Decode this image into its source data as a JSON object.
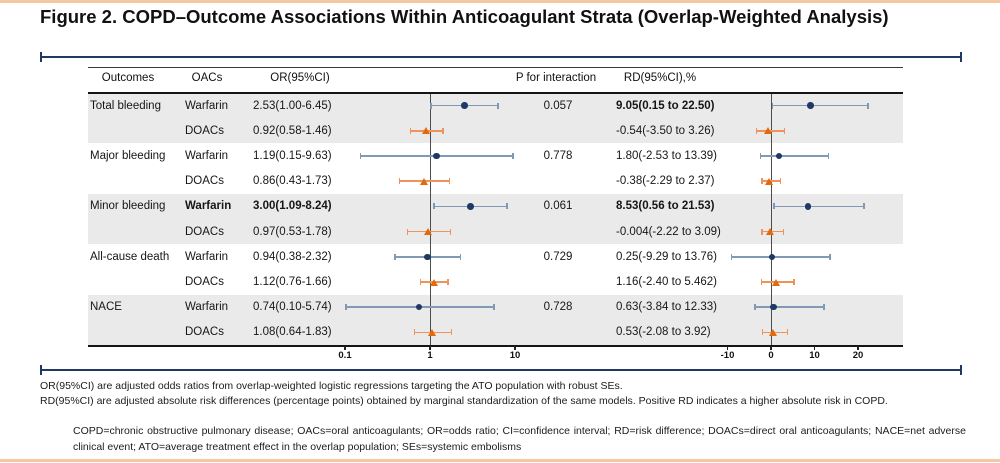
{
  "figure": {
    "title": "Figure 2. COPD–Outcome Associations Within Anticoagulant Strata (Overlap-Weighted Analysis)",
    "footnotes": [
      "OR(95%CI) are adjusted odds ratios from overlap-weighted logistic regressions targeting the ATO population with robust SEs.",
      "RD(95%CI) are adjusted absolute risk differences (percentage points) obtained by marginal standardization of the same models. Positive RD indicates a higher absolute risk in COPD."
    ],
    "abbreviations": "COPD=chronic obstructive pulmonary disease; OACs=oral anticoagulants; OR=odds ratio; CI=confidence interval; RD=risk difference; DOACs=direct oral anticoagulants; NACE=net adverse clinical event; ATO=average treatment effect in the overlap population; SEs=systemic embolisms",
    "colors": {
      "accent_border": "#F5C8A2",
      "bracket": "#1F3864",
      "band": "#EAEAEA",
      "reference_line": "#4d4d4d",
      "warfarin_marker": "#1F3864",
      "warfarin_ci": "#8099B5",
      "doacs_marker": "#E4690B",
      "doacs_ci": "#F0935B"
    }
  },
  "chart_data": {
    "type": "forest",
    "title": "COPD–Outcome Associations Within Anticoagulant Strata (Overlap-Weighted Analysis)",
    "columns": {
      "outcomes": "Outcomes",
      "oacs": "OACs",
      "or": "OR(95%CI)",
      "p": "P for interaction",
      "rd": "RD(95%CI),%"
    },
    "or_axis": {
      "scale": "log10",
      "ticks": [
        0.1,
        1,
        10
      ],
      "reference": 1
    },
    "rd_axis": {
      "scale": "linear",
      "ticks": [
        -10,
        0,
        10,
        20
      ],
      "reference": 0
    },
    "groups": [
      "Total bleeding",
      "Major bleeding",
      "Minor bleeding",
      "All-cause death",
      "NACE"
    ],
    "rows": [
      {
        "outcome": "Total bleeding",
        "oac": "Warfarin",
        "series": "warfarin",
        "or": 2.53,
        "or_lo": 1.0,
        "or_hi": 6.45,
        "or_text": "2.53(1.00-6.45)",
        "p": "0.057",
        "rd": 9.05,
        "rd_lo": 0.15,
        "rd_hi": 22.5,
        "rd_text": "9.05(0.15 to 22.50)",
        "bold_or": false,
        "bold_rd": true
      },
      {
        "outcome": "",
        "oac": "DOACs",
        "series": "doacs",
        "or": 0.92,
        "or_lo": 0.58,
        "or_hi": 1.46,
        "or_text": "0.92(0.58-1.46)",
        "p": "",
        "rd": -0.54,
        "rd_lo": -3.5,
        "rd_hi": 3.26,
        "rd_text": "-0.54(-3.50 to 3.26)",
        "bold_or": false,
        "bold_rd": false
      },
      {
        "outcome": "Major bleeding",
        "oac": "Warfarin",
        "series": "warfarin",
        "or": 1.19,
        "or_lo": 0.15,
        "or_hi": 9.63,
        "or_text": "1.19(0.15-9.63)",
        "p": "0.778",
        "rd": 1.8,
        "rd_lo": -2.53,
        "rd_hi": 13.39,
        "rd_text": "1.80(-2.53 to 13.39)",
        "bold_or": false,
        "bold_rd": false
      },
      {
        "outcome": "",
        "oac": "DOACs",
        "series": "doacs",
        "or": 0.86,
        "or_lo": 0.43,
        "or_hi": 1.73,
        "or_text": "0.86(0.43-1.73)",
        "p": "",
        "rd": -0.38,
        "rd_lo": -2.29,
        "rd_hi": 2.37,
        "rd_text": "-0.38(-2.29 to 2.37)",
        "bold_or": false,
        "bold_rd": false
      },
      {
        "outcome": "Minor bleeding",
        "oac": "Warfarin",
        "series": "warfarin",
        "or": 3.0,
        "or_lo": 1.09,
        "or_hi": 8.24,
        "or_text": "3.00(1.09-8.24)",
        "p": "0.061",
        "rd": 8.53,
        "rd_lo": 0.56,
        "rd_hi": 21.53,
        "rd_text": "8.53(0.56 to 21.53)",
        "bold_or": true,
        "bold_rd": true
      },
      {
        "outcome": "",
        "oac": "DOACs",
        "series": "doacs",
        "or": 0.97,
        "or_lo": 0.53,
        "or_hi": 1.78,
        "or_text": "0.97(0.53-1.78)",
        "p": "",
        "rd": -0.004,
        "rd_lo": -2.22,
        "rd_hi": 3.09,
        "rd_text": "-0.004(-2.22 to 3.09)",
        "bold_or": false,
        "bold_rd": false
      },
      {
        "outcome": "All-cause death",
        "oac": "Warfarin",
        "series": "warfarin",
        "or": 0.94,
        "or_lo": 0.38,
        "or_hi": 2.32,
        "or_text": "0.94(0.38-2.32)",
        "p": "0.729",
        "rd": 0.25,
        "rd_lo": -9.29,
        "rd_hi": 13.76,
        "rd_text": "0.25(-9.29 to 13.76)",
        "bold_or": false,
        "bold_rd": false
      },
      {
        "outcome": "",
        "oac": "DOACs",
        "series": "doacs",
        "or": 1.12,
        "or_lo": 0.76,
        "or_hi": 1.66,
        "or_text": "1.12(0.76-1.66)",
        "p": "",
        "rd": 1.16,
        "rd_lo": -2.4,
        "rd_hi": 5.462,
        "rd_text": "1.16(-2.40 to 5.462)",
        "bold_or": false,
        "bold_rd": false
      },
      {
        "outcome": "NACE",
        "oac": "Warfarin",
        "series": "warfarin",
        "or": 0.74,
        "or_lo": 0.1,
        "or_hi": 5.74,
        "or_text": "0.74(0.10-5.74)",
        "p": "0.728",
        "rd": 0.63,
        "rd_lo": -3.84,
        "rd_hi": 12.33,
        "rd_text": "0.63(-3.84 to 12.33)",
        "bold_or": false,
        "bold_rd": false
      },
      {
        "outcome": "",
        "oac": "DOACs",
        "series": "doacs",
        "or": 1.08,
        "or_lo": 0.64,
        "or_hi": 1.83,
        "or_text": "1.08(0.64-1.83)",
        "p": "",
        "rd": 0.53,
        "rd_lo": -2.08,
        "rd_hi": 3.92,
        "rd_text": "0.53(-2.08 to 3.92)",
        "bold_or": false,
        "bold_rd": false
      }
    ]
  }
}
